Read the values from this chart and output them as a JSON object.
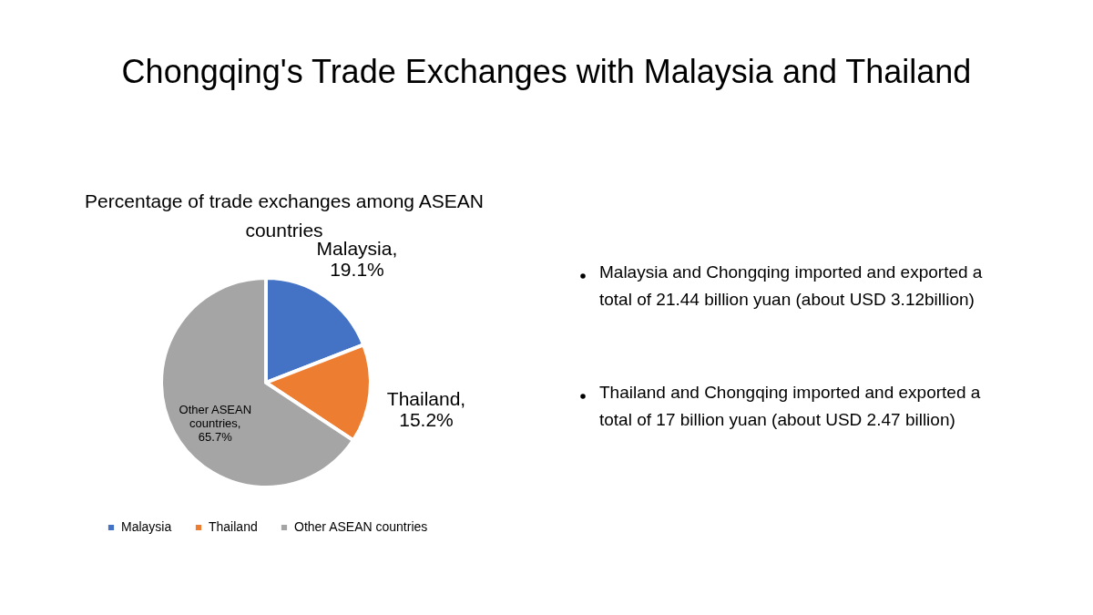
{
  "chart_data": {
    "type": "pie",
    "title": "Chongqing's Trade Exchanges with Malaysia and Thailand",
    "subtitle": "Percentage of trade exchanges among ASEAN\ncountries",
    "categories": [
      "Malaysia",
      "Thailand",
      "Other ASEAN countries"
    ],
    "values": [
      19.1,
      15.2,
      65.7
    ],
    "colors": [
      "#4472c4",
      "#ed7d31",
      "#a5a5a5"
    ],
    "value_labels": [
      "Malaysia,\n19.1%",
      "Thailand,\n15.2%",
      "Other ASEAN\ncountries,\n65.7%"
    ],
    "legend": "bottom",
    "annotations": [
      "Malaysia and Chongqing imported and exported a\ntotal of 21.44 billion yuan (about USD 3.12billion)",
      "Thailand and Chongqing imported and exported a\ntotal of 17 billion yuan (about USD 2.47 billion)"
    ]
  }
}
